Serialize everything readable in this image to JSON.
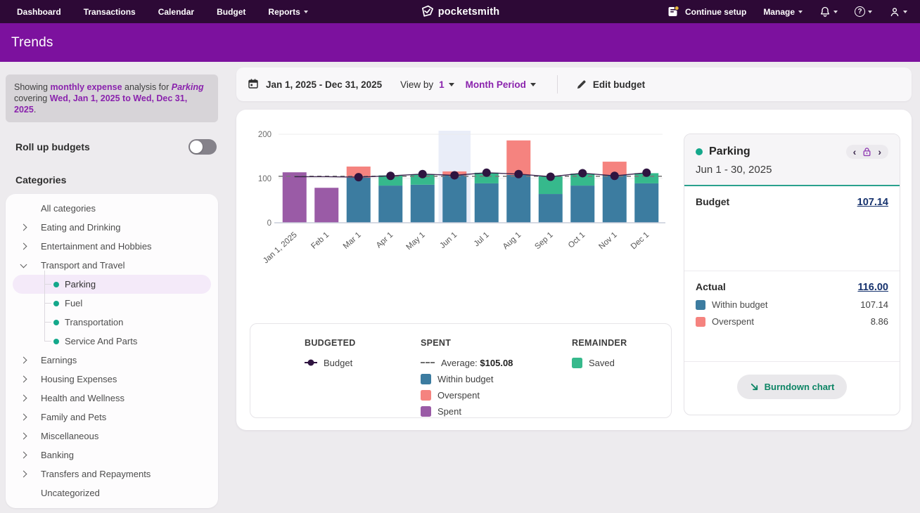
{
  "nav": {
    "items": [
      "Dashboard",
      "Transactions",
      "Calendar",
      "Budget",
      "Reports"
    ],
    "logo_text": "pocketsmith",
    "continue_setup_label": "Continue setup",
    "manage_label": "Manage",
    "help_glyph": "?"
  },
  "page_title": "Trends",
  "sidebar": {
    "summary": {
      "pre": "Showing ",
      "bold1": "monthly expense",
      "mid1": " analysis for ",
      "category": "Parking",
      "mid2": " covering ",
      "bold2": "Wed, Jan 1, 2025 to Wed, Dec 31, 2025",
      "post": "."
    },
    "rollup_label": "Roll up budgets",
    "categories_title": "Categories",
    "categories": [
      {
        "label": "All categories"
      },
      {
        "label": "Eating and Drinking",
        "chevron": "right"
      },
      {
        "label": "Entertainment and Hobbies",
        "chevron": "right"
      },
      {
        "label": "Transport and Travel",
        "chevron": "down",
        "children": [
          {
            "label": "Parking",
            "selected": true
          },
          {
            "label": "Fuel"
          },
          {
            "label": "Transportation"
          },
          {
            "label": "Service And Parts"
          }
        ]
      },
      {
        "label": "Earnings",
        "chevron": "right"
      },
      {
        "label": "Housing Expenses",
        "chevron": "right"
      },
      {
        "label": "Health and Wellness",
        "chevron": "right"
      },
      {
        "label": "Family and Pets",
        "chevron": "right"
      },
      {
        "label": "Miscellaneous",
        "chevron": "right"
      },
      {
        "label": "Banking",
        "chevron": "right"
      },
      {
        "label": "Transfers and Repayments",
        "chevron": "right"
      },
      {
        "label": "Uncategorized"
      }
    ]
  },
  "toolbar": {
    "date_range": "Jan 1, 2025 - Dec 31, 2025",
    "view_by_label": "View by",
    "view_by_value": "1",
    "period_value": "Month Period",
    "edit_budget_label": "Edit budget"
  },
  "chart_data": {
    "type": "bar",
    "title": "Monthly expense analysis for Parking",
    "xlabel": "",
    "ylabel": "",
    "ylim": [
      0,
      200
    ],
    "yticks": [
      0,
      100,
      200
    ],
    "grid": true,
    "average": 105.08,
    "highlighted_month": "Jun 1",
    "colors": {
      "within": "#3c7ca0",
      "overspent": "#f5837f",
      "saved": "#36b98c",
      "spent": "#9a5ba6",
      "budget_line": "#2f1440",
      "average_line": "#7a7a7a",
      "highlight_band": "#e9edf8"
    },
    "months": [
      {
        "label": "Jan 1, 2025",
        "spent": 114,
        "budget": 104,
        "budget_dot": false
      },
      {
        "label": "Feb 1",
        "spent": 79,
        "budget": 104,
        "budget_dot": false
      },
      {
        "label": "Mar 1",
        "within": 102,
        "overspent": 25,
        "budget": 103,
        "budget_dot": true
      },
      {
        "label": "Apr 1",
        "within": 84,
        "saved": 23,
        "budget": 106,
        "budget_dot": true
      },
      {
        "label": "May 1",
        "within": 86,
        "saved": 23,
        "budget": 110,
        "budget_dot": true
      },
      {
        "label": "Jun 1",
        "within": 107.14,
        "overspent": 8.86,
        "budget": 107.14,
        "budget_dot": true,
        "highlighted": true
      },
      {
        "label": "Jul 1",
        "within": 89,
        "saved": 24,
        "budget": 113,
        "budget_dot": true
      },
      {
        "label": "Aug 1",
        "within": 108,
        "overspent": 78,
        "budget": 110,
        "budget_dot": true
      },
      {
        "label": "Sep 1",
        "within": 65,
        "saved": 40,
        "budget": 104,
        "budget_dot": true
      },
      {
        "label": "Oct 1",
        "within": 84,
        "saved": 27,
        "budget": 112,
        "budget_dot": true
      },
      {
        "label": "Nov 1",
        "within": 108,
        "overspent": 30,
        "budget": 106,
        "budget_dot": true
      },
      {
        "label": "Dec 1",
        "within": 89,
        "saved": 23,
        "budget": 113,
        "budget_dot": true
      }
    ]
  },
  "legend": {
    "budgeted_title": "BUDGETED",
    "budget_label": "Budget",
    "spent_title": "SPENT",
    "average_label": "Average:",
    "average_value": "$105.08",
    "within_label": "Within budget",
    "overspent_label": "Overspent",
    "spent_label": "Spent",
    "remainder_title": "REMAINDER",
    "saved_label": "Saved"
  },
  "detail_panel": {
    "category": "Parking",
    "period": "Jun 1 - 30, 2025",
    "budget_label": "Budget",
    "budget_value": "107.14",
    "actual_label": "Actual",
    "actual_value": "116.00",
    "actual_rows": [
      {
        "label": "Within budget",
        "value": "107.14",
        "color": "#3c7ca0"
      },
      {
        "label": "Overspent",
        "value": "8.86",
        "color": "#f5837f"
      }
    ],
    "burndown_label": "Burndown chart"
  }
}
